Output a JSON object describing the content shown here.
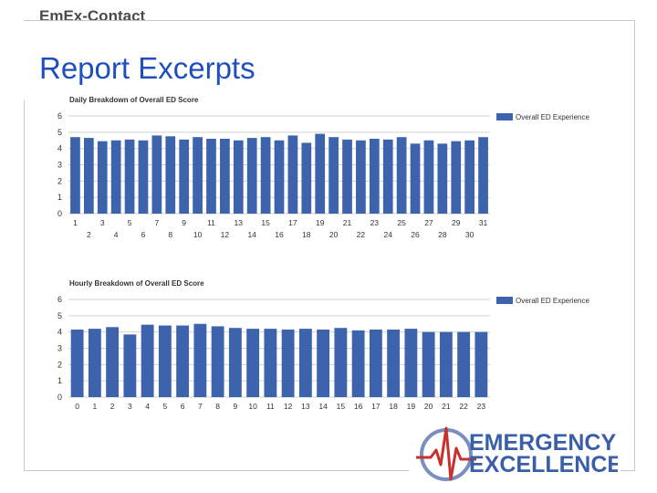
{
  "header": {
    "brand": "EmEx-Contact",
    "title": "Report Excerpts"
  },
  "logo": {
    "line1": "EMERGENCY",
    "line2": "EXCELLENCE"
  },
  "colors": {
    "bar": "#3d63ad",
    "title": "#1f4fbf",
    "logo_text": "#3b5ea9",
    "logo_ring": "#7a8fc0",
    "logo_pulse": "#c9302c"
  },
  "chart_data": [
    {
      "type": "bar",
      "title": "Daily Breakdown of Overall ED Score",
      "legend": "top-right",
      "grid": true,
      "ylim": [
        0,
        6
      ],
      "yticks": [
        0,
        1,
        2,
        3,
        4,
        5,
        6
      ],
      "categories": [
        "1",
        "2",
        "3",
        "4",
        "5",
        "6",
        "7",
        "8",
        "9",
        "10",
        "11",
        "12",
        "13",
        "14",
        "15",
        "16",
        "17",
        "18",
        "19",
        "20",
        "21",
        "22",
        "23",
        "24",
        "25",
        "26",
        "27",
        "28",
        "29",
        "30",
        "31"
      ],
      "series": [
        {
          "name": "Overall ED Experience",
          "values": [
            4.7,
            4.65,
            4.45,
            4.5,
            4.55,
            4.5,
            4.8,
            4.75,
            4.55,
            4.7,
            4.6,
            4.6,
            4.5,
            4.65,
            4.7,
            4.5,
            4.8,
            4.35,
            4.9,
            4.7,
            4.55,
            4.5,
            4.6,
            4.55,
            4.7,
            4.3,
            4.5,
            4.3,
            4.45,
            4.5,
            4.7
          ]
        }
      ]
    },
    {
      "type": "bar",
      "title": "Hourly Breakdown of Overall ED Score",
      "legend": "top-right",
      "grid": true,
      "ylim": [
        0,
        6
      ],
      "yticks": [
        0,
        1,
        2,
        3,
        4,
        5,
        6
      ],
      "categories": [
        "0",
        "1",
        "2",
        "3",
        "4",
        "5",
        "6",
        "7",
        "8",
        "9",
        "10",
        "11",
        "12",
        "13",
        "14",
        "15",
        "16",
        "17",
        "18",
        "19",
        "20",
        "21",
        "22",
        "23"
      ],
      "series": [
        {
          "name": "Overall ED Experience",
          "values": [
            4.15,
            4.2,
            4.3,
            3.85,
            4.45,
            4.4,
            4.4,
            4.5,
            4.35,
            4.25,
            4.2,
            4.2,
            4.15,
            4.2,
            4.15,
            4.25,
            4.1,
            4.15,
            4.15,
            4.2,
            4.0,
            4.0,
            4.0,
            4.0
          ]
        }
      ]
    }
  ]
}
